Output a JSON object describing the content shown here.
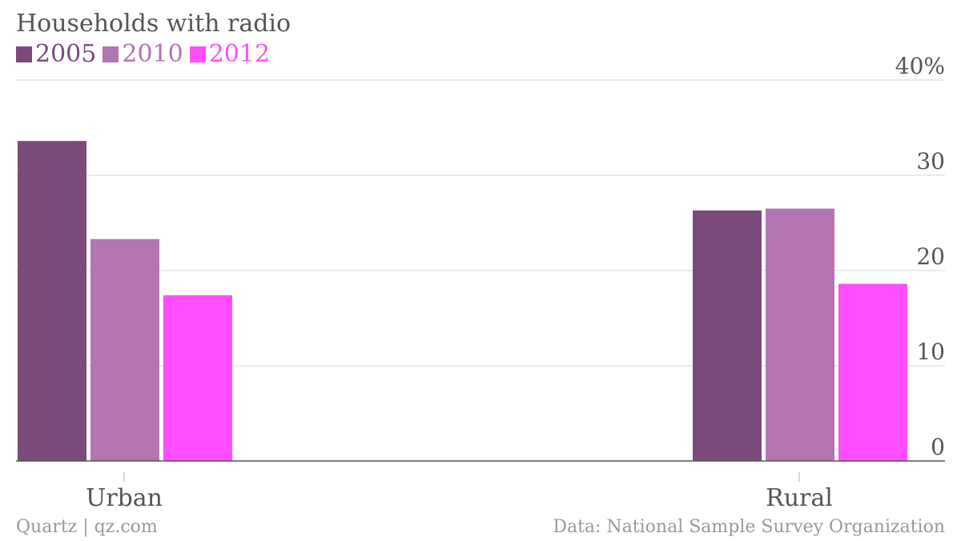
{
  "chart_data": {
    "type": "bar",
    "title": "Households with radio",
    "categories": [
      "Urban",
      "Rural"
    ],
    "series": [
      {
        "name": "2005",
        "color": "#7b4a7b",
        "values": [
          33.6,
          26.3
        ]
      },
      {
        "name": "2010",
        "color": "#b374b3",
        "values": [
          23.3,
          26.5
        ]
      },
      {
        "name": "2012",
        "color": "#ff4dff",
        "values": [
          17.4,
          18.6
        ]
      }
    ],
    "ylim": [
      0,
      40
    ],
    "yticks": [
      {
        "value": 0,
        "label": "0"
      },
      {
        "value": 10,
        "label": "10"
      },
      {
        "value": 20,
        "label": "20"
      },
      {
        "value": 30,
        "label": "30"
      },
      {
        "value": 40,
        "label": "40%"
      }
    ],
    "y_axis_side": "right",
    "grid": true,
    "legend_position": "top-left",
    "xlabel": "",
    "ylabel": ""
  },
  "footer": {
    "left": "Quartz | qz.com",
    "right": "Data: National Sample Survey Organization"
  }
}
